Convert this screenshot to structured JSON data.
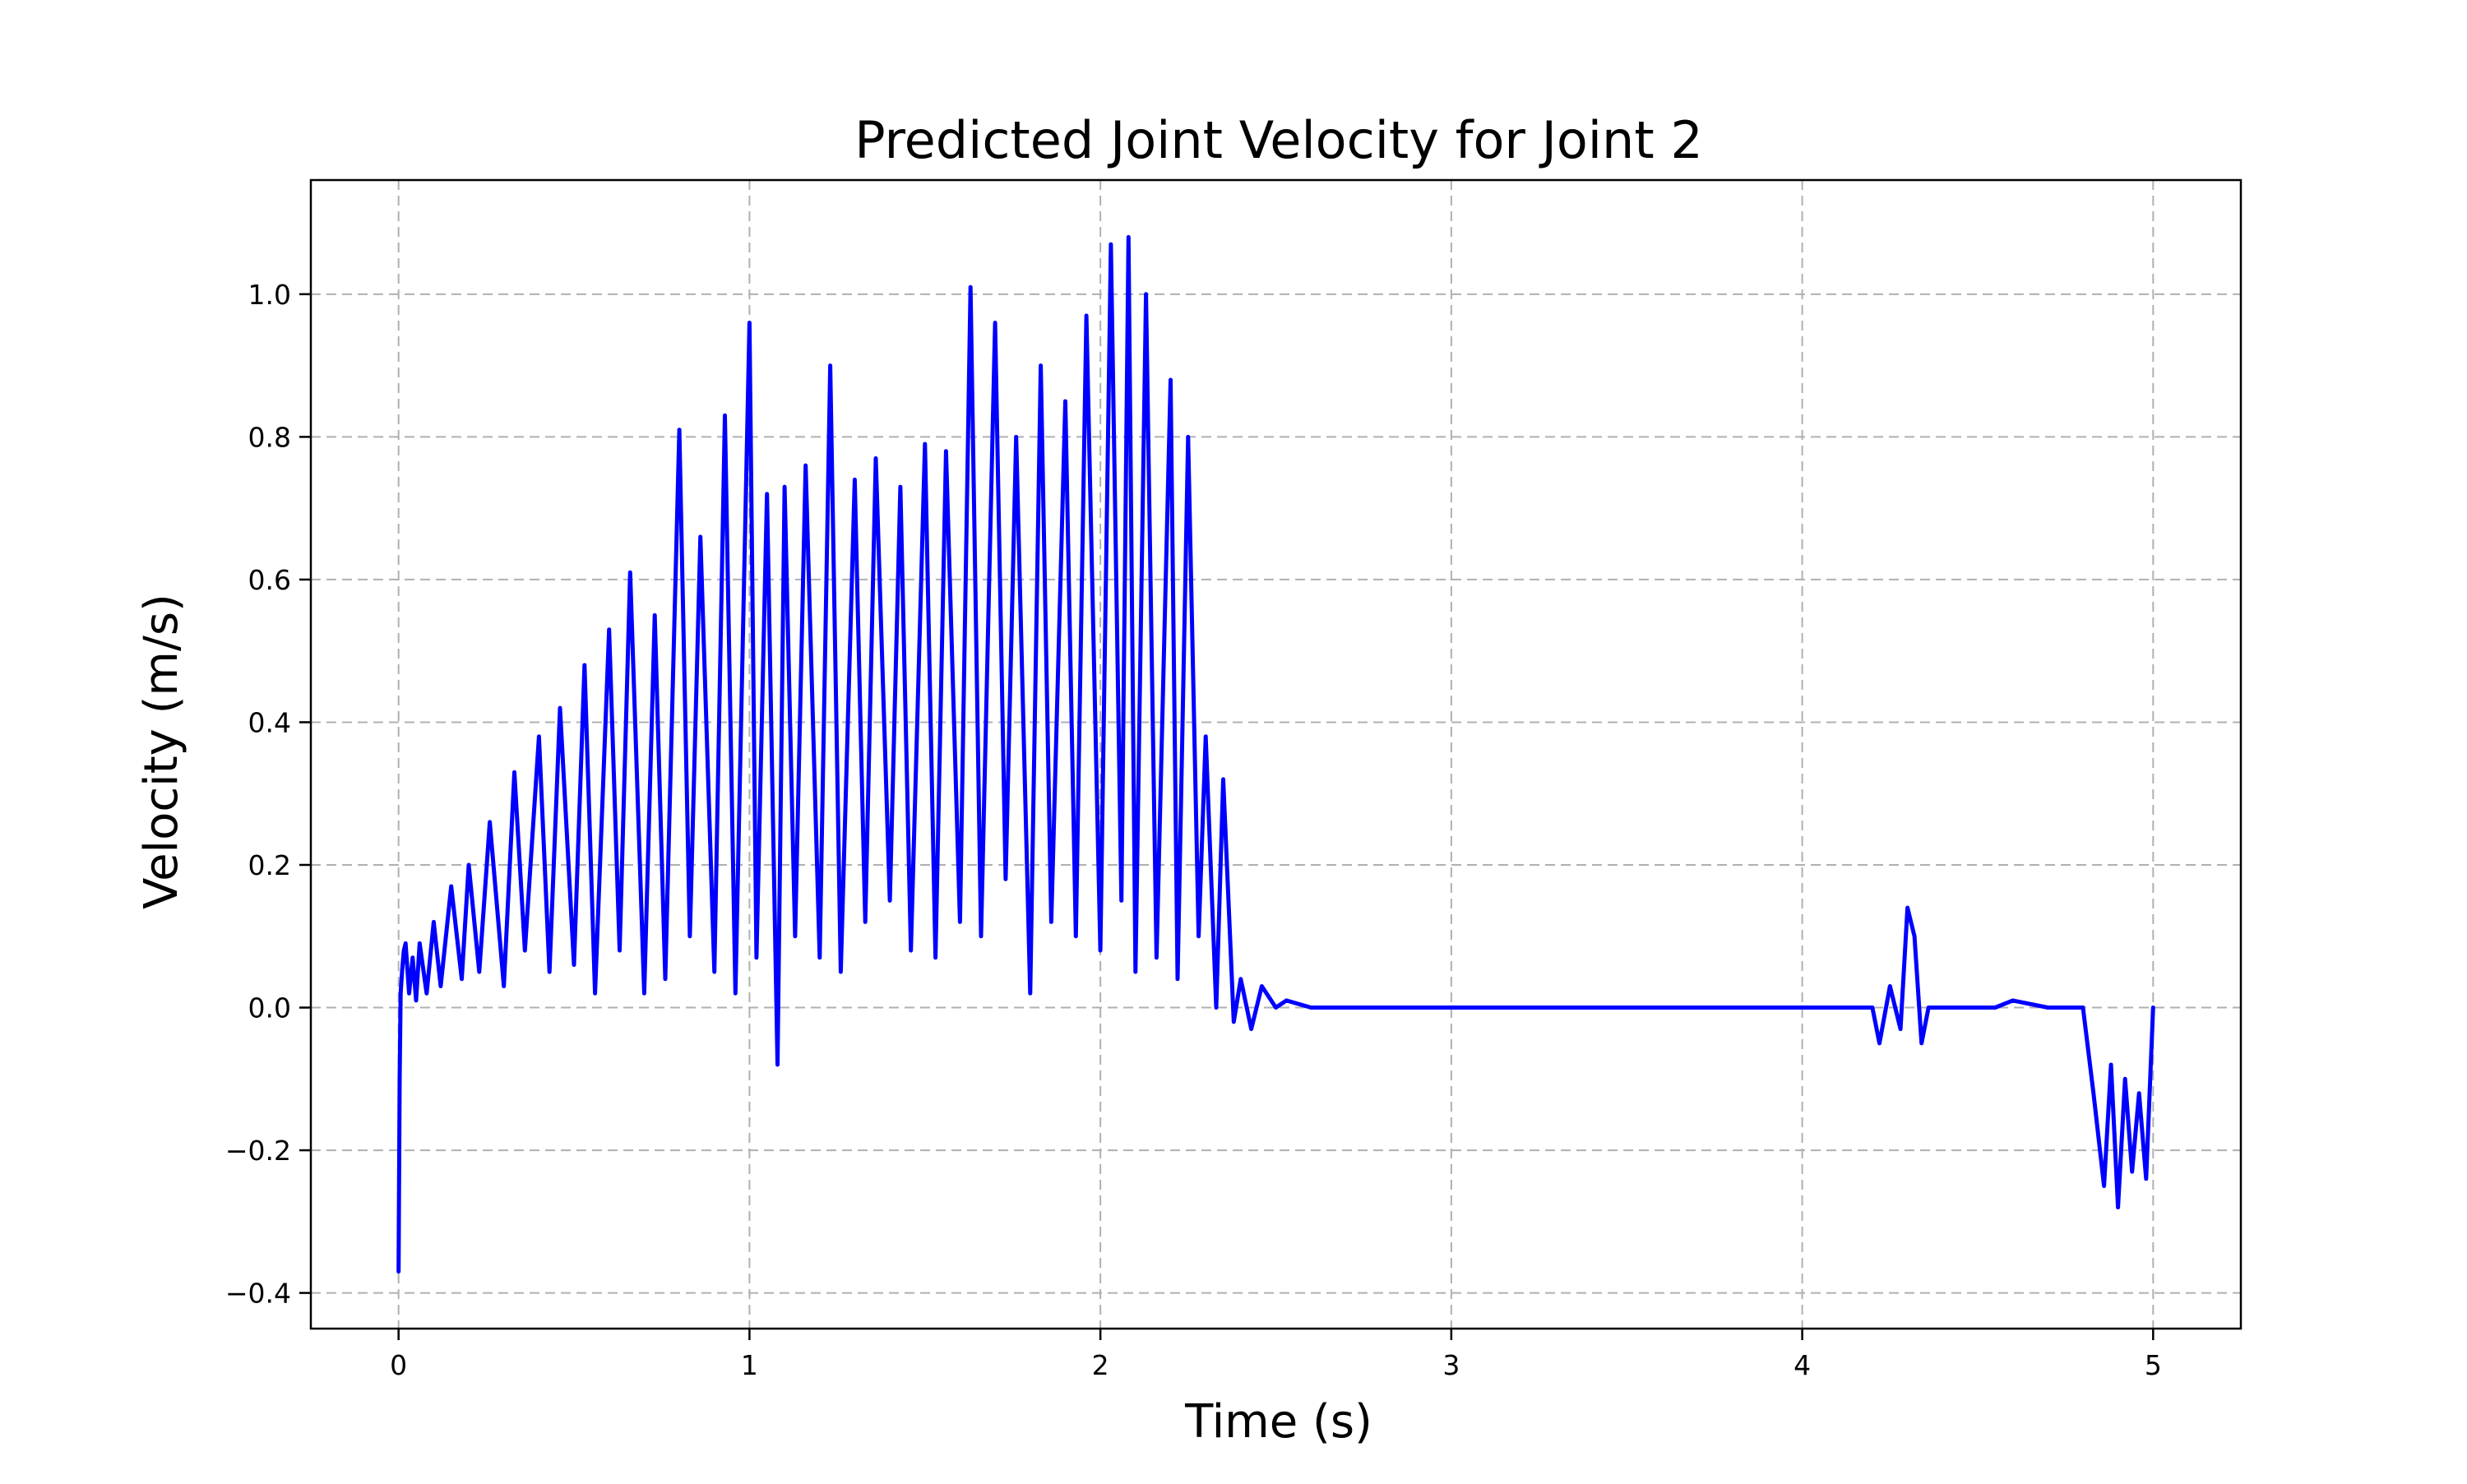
{
  "chart_data": {
    "type": "line",
    "title": "Predicted Joint Velocity for Joint 2",
    "xlabel": "Time (s)",
    "ylabel": "Velocity (m/s)",
    "xlim": [
      -0.25,
      5.25
    ],
    "ylim": [
      -0.45,
      1.16
    ],
    "xticks": [
      0,
      1,
      2,
      3,
      4,
      5
    ],
    "yticks": [
      -0.4,
      -0.2,
      0.0,
      0.2,
      0.4,
      0.6,
      0.8,
      1.0
    ],
    "xtick_labels": [
      "0",
      "1",
      "2",
      "3",
      "4",
      "5"
    ],
    "ytick_labels": [
      "−0.4",
      "−0.2",
      "0.0",
      "0.2",
      "0.4",
      "0.6",
      "0.8",
      "1.0"
    ],
    "grid": true,
    "grid_style": "dashed",
    "legend": "none",
    "colors": {
      "series": "#0000ff",
      "grid": "#b0b0b0",
      "axes": "#000000"
    },
    "series": [
      {
        "x": [
          0,
          0.003,
          0.006,
          0.01,
          0.015,
          0.02,
          0.03,
          0.04,
          0.05,
          0.06,
          0.08,
          0.1,
          0.12,
          0.15,
          0.18,
          0.2,
          0.23,
          0.26,
          0.3,
          0.33,
          0.36,
          0.4,
          0.43,
          0.46,
          0.5,
          0.53,
          0.56,
          0.6,
          0.63,
          0.66,
          0.7,
          0.73,
          0.76,
          0.8,
          0.83,
          0.86,
          0.9,
          0.93,
          0.96,
          1.0,
          1.02,
          1.05,
          1.08,
          1.1,
          1.13,
          1.16,
          1.2,
          1.23,
          1.26,
          1.3,
          1.33,
          1.36,
          1.4,
          1.43,
          1.46,
          1.5,
          1.53,
          1.56,
          1.6,
          1.63,
          1.66,
          1.7,
          1.73,
          1.76,
          1.8,
          1.83,
          1.86,
          1.9,
          1.93,
          1.96,
          2.0,
          2.03,
          2.06,
          2.08,
          2.1,
          2.13,
          2.16,
          2.2,
          2.22,
          2.25,
          2.28,
          2.3,
          2.33,
          2.35,
          2.38,
          2.4,
          2.43,
          2.46,
          2.5,
          2.53,
          2.6,
          3.0,
          3.5,
          4.0,
          4.2,
          4.22,
          4.25,
          4.28,
          4.3,
          4.32,
          4.34,
          4.36,
          4.5,
          4.55,
          4.6,
          4.7,
          4.8,
          4.83,
          4.86,
          4.88,
          4.9,
          4.92,
          4.94,
          4.96,
          4.98,
          5.0
        ],
        "y": [
          -0.37,
          -0.1,
          0.02,
          0.05,
          0.08,
          0.09,
          0.02,
          0.07,
          0.01,
          0.09,
          0.02,
          0.12,
          0.03,
          0.17,
          0.04,
          0.2,
          0.05,
          0.26,
          0.03,
          0.33,
          0.08,
          0.38,
          0.05,
          0.42,
          0.06,
          0.48,
          0.02,
          0.53,
          0.08,
          0.61,
          0.02,
          0.55,
          0.04,
          0.81,
          0.1,
          0.66,
          0.05,
          0.83,
          0.02,
          0.96,
          0.07,
          0.72,
          -0.08,
          0.73,
          0.1,
          0.76,
          0.07,
          0.9,
          0.05,
          0.74,
          0.12,
          0.77,
          0.15,
          0.73,
          0.08,
          0.79,
          0.07,
          0.78,
          0.12,
          1.01,
          0.1,
          0.96,
          0.18,
          0.8,
          0.02,
          0.9,
          0.12,
          0.85,
          0.1,
          0.97,
          0.08,
          1.07,
          0.15,
          1.08,
          0.05,
          1.0,
          0.07,
          0.88,
          0.04,
          0.8,
          0.1,
          0.38,
          0.0,
          0.32,
          -0.02,
          0.04,
          -0.03,
          0.03,
          0.0,
          0.01,
          0.0,
          0.0,
          0.0,
          0.0,
          0.0,
          -0.05,
          0.03,
          -0.03,
          0.14,
          0.1,
          -0.05,
          0.0,
          0.0,
          0.0,
          0.01,
          0.0,
          0.0,
          -0.12,
          -0.25,
          -0.08,
          -0.28,
          -0.1,
          -0.23,
          -0.12,
          -0.24,
          0.0
        ]
      }
    ]
  }
}
